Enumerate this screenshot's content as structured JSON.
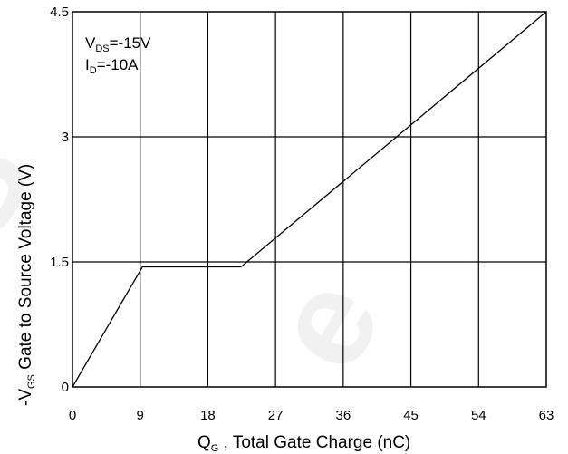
{
  "chart_data": {
    "type": "line",
    "x": [
      0,
      9.3,
      22.4,
      63
    ],
    "series": [
      {
        "values": [
          0,
          1.44,
          1.44,
          4.5
        ]
      }
    ],
    "xticks": [
      "0",
      "9",
      "18",
      "27",
      "36",
      "45",
      "54",
      "63"
    ],
    "yticks": [
      "0",
      "1.5",
      "3",
      "4.5"
    ],
    "xlim": [
      0,
      63
    ],
    "ylim": [
      0,
      4.5
    ],
    "grid": true,
    "xlabel": {
      "main": "Q",
      "sub": "G",
      "rest": " , Total Gate Charge (nC)"
    },
    "ylabel": {
      "main": "-V",
      "sub": "GS",
      "rest": "   Gate to Source Voltage (V)"
    },
    "annotations": [
      {
        "main": "V",
        "sub": "DS",
        "rest": "=-15V"
      },
      {
        "main": "I",
        "sub": "D",
        "rest": "=-10A"
      }
    ],
    "colors": {
      "line": "#000000",
      "grid": "#000000"
    }
  }
}
